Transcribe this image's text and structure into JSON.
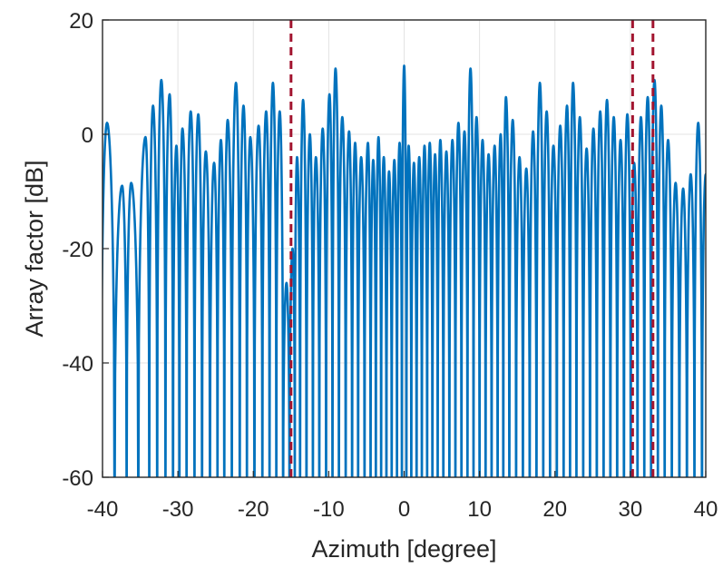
{
  "chart_data": {
    "type": "line",
    "xlabel": "Azimuth [degree]",
    "ylabel": "Array factor [dB]",
    "xlim": [
      -40,
      40
    ],
    "ylim": [
      -60,
      20
    ],
    "xticks": [
      -40,
      -30,
      -20,
      -10,
      0,
      10,
      20,
      30,
      40
    ],
    "yticks": [
      20,
      0,
      -20,
      -40,
      -60
    ],
    "grid": true,
    "line_color": "#0072BD",
    "marker_color": "#A2142F",
    "vertical_markers": [
      -15,
      30.3,
      33
    ],
    "series": [
      {
        "peaks": [
          [
            -39.4,
            2
          ],
          [
            -37.4,
            -9
          ],
          [
            -36.2,
            -8.5
          ],
          [
            -34.3,
            -0.5
          ],
          [
            -33.3,
            5
          ],
          [
            -32.2,
            9.5
          ],
          [
            -31.1,
            7
          ],
          [
            -30.2,
            -2
          ],
          [
            -29.4,
            1
          ],
          [
            -28.3,
            4
          ],
          [
            -27.3,
            3.5
          ],
          [
            -26.3,
            -3
          ],
          [
            -25.2,
            -5
          ],
          [
            -24.3,
            -1
          ],
          [
            -23.4,
            2.5
          ],
          [
            -22.3,
            9
          ],
          [
            -21.3,
            5
          ],
          [
            -20.4,
            -0.5
          ],
          [
            -19.3,
            1.5
          ],
          [
            -18.3,
            4
          ],
          [
            -17.4,
            9
          ],
          [
            -16.5,
            4
          ],
          [
            -15.6,
            -26
          ],
          [
            -14.8,
            -20
          ],
          [
            -14.2,
            -4
          ],
          [
            -13.4,
            6
          ],
          [
            -12.5,
            0
          ],
          [
            -11.7,
            -4
          ],
          [
            -10.8,
            1
          ],
          [
            -9.9,
            7
          ],
          [
            -9.1,
            11.5
          ],
          [
            -8.2,
            3
          ],
          [
            -7.3,
            0.5
          ],
          [
            -6.5,
            -1.5
          ],
          [
            -5.7,
            -4
          ],
          [
            -4.8,
            -1.5
          ],
          [
            -4.1,
            -4.5
          ],
          [
            -3.4,
            -0.5
          ],
          [
            -2.7,
            -4
          ],
          [
            -2,
            -6.5
          ],
          [
            -1.3,
            -4.5
          ],
          [
            -0.6,
            -1.5
          ],
          [
            0,
            12
          ],
          [
            0.6,
            -2
          ],
          [
            1.3,
            -5
          ],
          [
            2,
            -4
          ],
          [
            2.7,
            -2
          ],
          [
            3.4,
            -1.5
          ],
          [
            4.1,
            -3.5
          ],
          [
            4.8,
            -1
          ],
          [
            5.6,
            -3
          ],
          [
            6.4,
            -1
          ],
          [
            7.2,
            2
          ],
          [
            8,
            0.5
          ],
          [
            8.8,
            11.5
          ],
          [
            9.6,
            3
          ],
          [
            10.4,
            -1
          ],
          [
            11.2,
            -3.5
          ],
          [
            12,
            -2
          ],
          [
            12.8,
            0
          ],
          [
            13.5,
            6.5
          ],
          [
            14.4,
            2.5
          ],
          [
            15.3,
            -4
          ],
          [
            16.2,
            -6
          ],
          [
            17.1,
            0.5
          ],
          [
            18,
            9
          ],
          [
            18.9,
            4
          ],
          [
            19.8,
            -2
          ],
          [
            20.7,
            1.5
          ],
          [
            21.6,
            5
          ],
          [
            22.4,
            9
          ],
          [
            23.3,
            3
          ],
          [
            24.2,
            -2.5
          ],
          [
            25.1,
            1
          ],
          [
            26,
            4
          ],
          [
            26.9,
            6
          ],
          [
            27.8,
            3
          ],
          [
            28.7,
            -1
          ],
          [
            29.6,
            3.5
          ],
          [
            30.5,
            -5
          ],
          [
            31.4,
            3
          ],
          [
            32.3,
            6.5
          ],
          [
            33.2,
            9.5
          ],
          [
            34.1,
            5
          ],
          [
            35,
            -1
          ],
          [
            36,
            -8.5
          ],
          [
            37,
            -9.5
          ],
          [
            38,
            -7
          ],
          [
            39,
            2
          ],
          [
            40,
            -7
          ]
        ]
      }
    ]
  }
}
